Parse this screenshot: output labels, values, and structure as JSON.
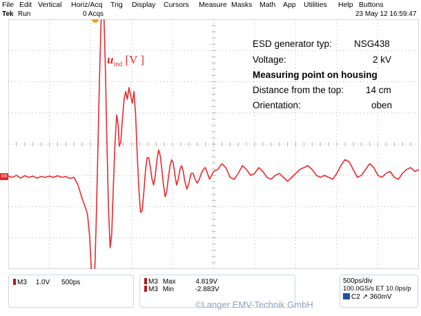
{
  "menu": [
    "File",
    "Edit",
    "Vertical",
    "Horiz/Acq",
    "Trig",
    "Display",
    "Cursors",
    "Measure",
    "Masks",
    "Math",
    "App",
    "Utilities",
    "Help",
    "Buttons"
  ],
  "status": {
    "brand": "Tek",
    "state": "Run",
    "acqs": "0 Acqs",
    "datetime": "23 May 12 16:59:47"
  },
  "channel_marker": "M3",
  "annotations": {
    "generator_label": "ESD generator typ:",
    "generator_value": "NSG438",
    "voltage_label": "Voltage:",
    "voltage_value": "2 kV",
    "measuring_point": "Measuring point on housing",
    "distance_label": "Distance from the top:",
    "distance_value": "14 cm",
    "orientation_label": "Orientation:",
    "orientation_value": "oben"
  },
  "signal_label": {
    "symbol": "u",
    "subscript": "ind",
    "unit": "[V ]"
  },
  "panel_left": {
    "channel": "M3",
    "scale": "1.0V",
    "time": "500ps"
  },
  "panel_mid": {
    "ch1": "M3",
    "max_label": "Max",
    "max_value": "4.819V",
    "ch2": "M3",
    "min_label": "Min",
    "min_value": "-2.883V"
  },
  "panel_right": {
    "timebase": "500ps/div",
    "sample": "100.0GS/s ET 10.0ps/p",
    "trigger_channel": "C2",
    "trigger_slope": "↗",
    "trigger_level": "360mV"
  },
  "copyright": "©Langer EMV-Technik GmbH",
  "colors": {
    "trace": "#e8282b",
    "grid": "#b0b0b0",
    "panel_border": "#c9d6e8",
    "trigger_marker": "#f29a1e"
  },
  "chart_data": {
    "type": "line",
    "x_divisions": 10,
    "y_divisions": 8,
    "y_per_div": 1.0,
    "x_per_div": "500ps",
    "series": [
      {
        "values": [
          [
            0.0,
            0.03
          ],
          [
            0.1,
            0.0
          ],
          [
            0.2,
            0.05
          ],
          [
            0.3,
            -0.02
          ],
          [
            0.4,
            0.04
          ],
          [
            0.5,
            0.0
          ],
          [
            0.6,
            0.03
          ],
          [
            0.7,
            -0.02
          ],
          [
            0.8,
            0.02
          ],
          [
            0.9,
            0.0
          ],
          [
            1.0,
            0.03
          ],
          [
            1.1,
            0.0
          ],
          [
            1.2,
            0.04
          ],
          [
            1.3,
            0.0
          ],
          [
            1.4,
            0.02
          ],
          [
            1.5,
            -0.03
          ],
          [
            1.6,
            0.0
          ],
          [
            1.7,
            -0.2
          ],
          [
            1.8,
            -0.55
          ],
          [
            1.87,
            -0.75
          ],
          [
            1.93,
            -0.95
          ],
          [
            1.98,
            -1.5
          ],
          [
            2.02,
            -2.3
          ],
          [
            2.06,
            -2.88
          ],
          [
            2.1,
            -2.6
          ],
          [
            2.14,
            -1.2
          ],
          [
            2.18,
            0.6
          ],
          [
            2.22,
            2.5
          ],
          [
            2.26,
            4.0
          ],
          [
            2.29,
            4.82
          ],
          [
            2.32,
            4.5
          ],
          [
            2.36,
            3.0
          ],
          [
            2.4,
            1.0
          ],
          [
            2.44,
            -0.8
          ],
          [
            2.48,
            -1.8
          ],
          [
            2.52,
            -1.45
          ],
          [
            2.56,
            -0.2
          ],
          [
            2.6,
            0.9
          ],
          [
            2.64,
            1.6
          ],
          [
            2.68,
            1.3
          ],
          [
            2.7,
            0.8
          ],
          [
            2.74,
            0.9
          ],
          [
            2.78,
            1.5
          ],
          [
            2.82,
            2.0
          ],
          [
            2.86,
            2.2
          ],
          [
            2.9,
            2.0
          ],
          [
            2.94,
            2.3
          ],
          [
            2.98,
            2.1
          ],
          [
            3.02,
            1.9
          ],
          [
            3.06,
            2.2
          ],
          [
            3.1,
            1.6
          ],
          [
            3.14,
            0.6
          ],
          [
            3.18,
            -0.3
          ],
          [
            3.22,
            -0.9
          ],
          [
            3.26,
            -0.85
          ],
          [
            3.3,
            -0.4
          ],
          [
            3.34,
            0.15
          ],
          [
            3.38,
            0.5
          ],
          [
            3.42,
            0.5
          ],
          [
            3.46,
            0.25
          ],
          [
            3.5,
            -0.05
          ],
          [
            3.54,
            -0.2
          ],
          [
            3.58,
            0.05
          ],
          [
            3.62,
            0.45
          ],
          [
            3.66,
            0.7
          ],
          [
            3.7,
            0.55
          ],
          [
            3.74,
            0.2
          ],
          [
            3.78,
            -0.2
          ],
          [
            3.82,
            -0.5
          ],
          [
            3.86,
            -0.35
          ],
          [
            3.9,
            0.0
          ],
          [
            3.94,
            0.3
          ],
          [
            3.98,
            0.45
          ],
          [
            4.02,
            0.35
          ],
          [
            4.06,
            0.05
          ],
          [
            4.1,
            -0.2
          ],
          [
            4.14,
            -0.05
          ],
          [
            4.18,
            0.2
          ],
          [
            4.22,
            0.3
          ],
          [
            4.26,
            0.15
          ],
          [
            4.3,
            -0.1
          ],
          [
            4.35,
            -0.3
          ],
          [
            4.4,
            -0.15
          ],
          [
            4.45,
            0.1
          ],
          [
            4.5,
            0.1
          ],
          [
            4.55,
            -0.05
          ],
          [
            4.6,
            -0.15
          ],
          [
            4.65,
            -0.05
          ],
          [
            4.7,
            0.1
          ],
          [
            4.75,
            0.2
          ],
          [
            4.8,
            0.25
          ],
          [
            4.85,
            0.1
          ],
          [
            4.9,
            -0.05
          ],
          [
            4.95,
            0.05
          ],
          [
            5.0,
            0.15
          ],
          [
            5.1,
            0.2
          ],
          [
            5.2,
            0.35
          ],
          [
            5.3,
            0.25
          ],
          [
            5.4,
            0.0
          ],
          [
            5.5,
            -0.05
          ],
          [
            5.6,
            0.1
          ],
          [
            5.7,
            0.3
          ],
          [
            5.8,
            0.2
          ],
          [
            5.9,
            0.05
          ],
          [
            6.0,
            0.1
          ],
          [
            6.1,
            0.25
          ],
          [
            6.2,
            0.15
          ],
          [
            6.3,
            0.0
          ],
          [
            6.4,
            -0.05
          ],
          [
            6.5,
            0.05
          ],
          [
            6.6,
            0.1
          ],
          [
            6.7,
            0.0
          ],
          [
            6.8,
            -0.1
          ],
          [
            6.9,
            0.0
          ],
          [
            7.0,
            0.1
          ],
          [
            7.1,
            0.2
          ],
          [
            7.2,
            0.25
          ],
          [
            7.3,
            0.3
          ],
          [
            7.4,
            0.2
          ],
          [
            7.5,
            0.05
          ],
          [
            7.6,
            0.0
          ],
          [
            7.7,
            0.05
          ],
          [
            7.8,
            0.0
          ],
          [
            7.9,
            -0.05
          ],
          [
            8.0,
            0.1
          ],
          [
            8.1,
            0.3
          ],
          [
            8.2,
            0.45
          ],
          [
            8.3,
            0.4
          ],
          [
            8.4,
            0.2
          ],
          [
            8.5,
            0.0
          ],
          [
            8.6,
            0.05
          ],
          [
            8.7,
            0.2
          ],
          [
            8.8,
            0.35
          ],
          [
            8.9,
            0.25
          ],
          [
            9.0,
            0.05
          ],
          [
            9.1,
            0.0
          ],
          [
            9.2,
            0.1
          ],
          [
            9.3,
            0.15
          ],
          [
            9.4,
            0.0
          ],
          [
            9.5,
            -0.05
          ],
          [
            9.6,
            0.1
          ],
          [
            9.7,
            0.2
          ],
          [
            9.8,
            0.25
          ],
          [
            9.9,
            0.15
          ],
          [
            10.0,
            0.2
          ]
        ]
      }
    ]
  }
}
